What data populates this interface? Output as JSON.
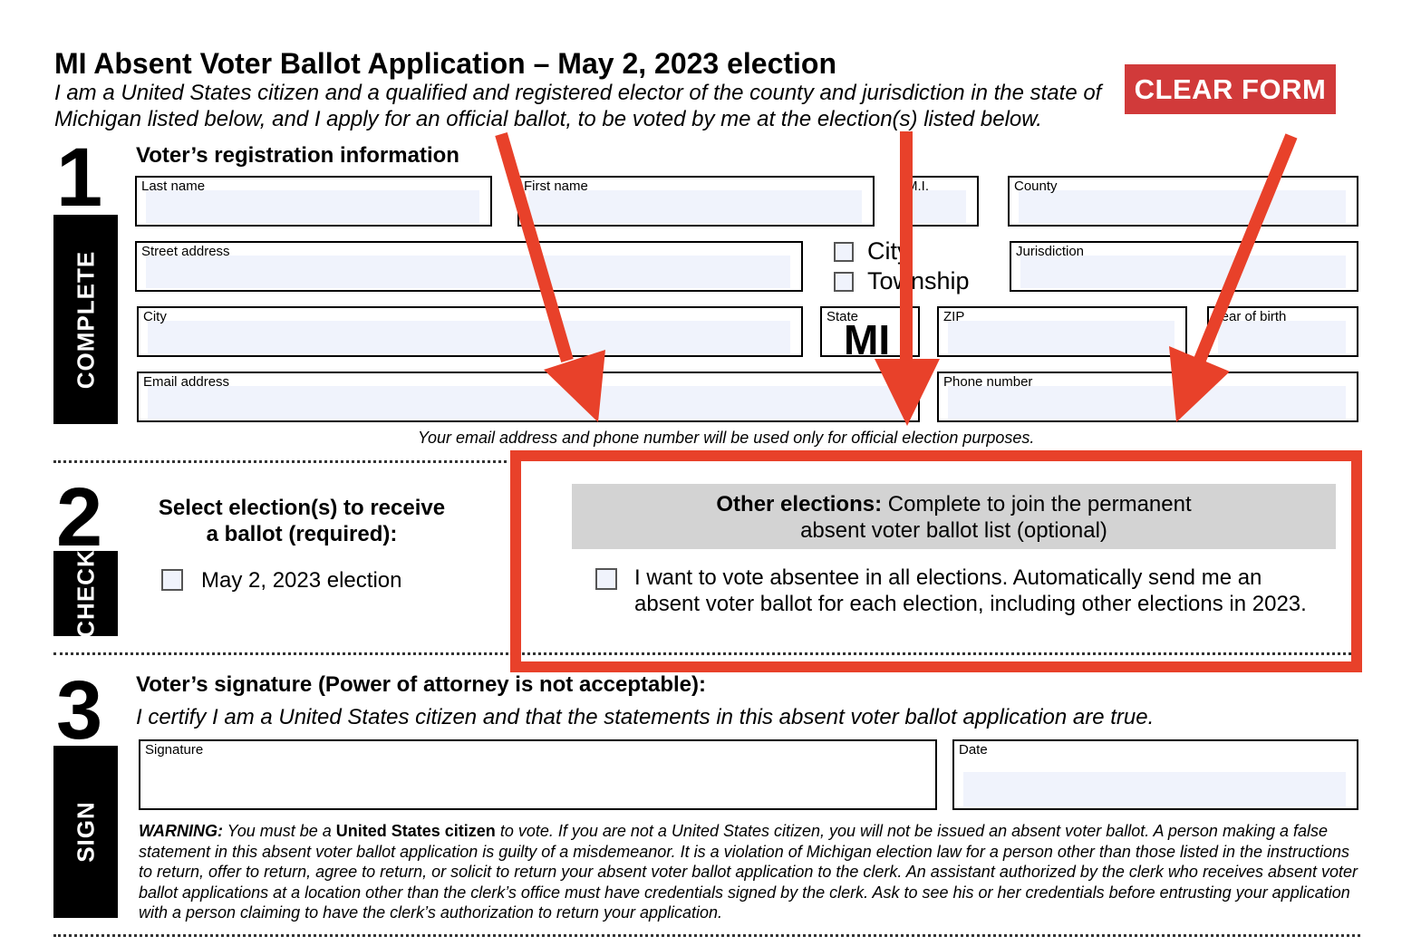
{
  "header": {
    "title": "MI Absent Voter Ballot Application – May 2, 2023 election",
    "subtitle": "I am a United States citizen and a qualified and registered elector of the county and jurisdiction in the state of Michigan listed below, and I apply for an official ballot, to be voted by me at the election(s) listed below.",
    "clear_form_label": "CLEAR FORM"
  },
  "section1": {
    "number": "1",
    "tab": "COMPLETE",
    "heading": "Voter’s registration information",
    "fields": {
      "last_name": "Last name",
      "first_name": "First name",
      "mi": "M.I.",
      "county": "County",
      "street": "Street address",
      "jurisdiction": "Jurisdiction",
      "city": "City",
      "state": "State",
      "state_value": "MI",
      "zip": "ZIP",
      "year_of_birth": "Year of birth",
      "email": "Email address",
      "phone": "Phone number"
    },
    "jurisdiction_type": {
      "city": "City",
      "township": "Township"
    },
    "note": "Your email address and phone number will be used only for official election purposes."
  },
  "section2": {
    "number": "2",
    "tab": "CHECK",
    "heading_line1": "Select election(s) to receive",
    "heading_line2": "a ballot (required):",
    "election_option": "May 2, 2023 election",
    "other_heading_bold": "Other elections:",
    "other_heading_rest": " Complete to join the permanent",
    "other_heading_line2": "absent voter ballot list (optional)",
    "permanent_option": "I want to vote absentee in all elections. Automatically send me an absent voter ballot for each election, including other elections in 2023."
  },
  "section3": {
    "number": "3",
    "tab": "SIGN",
    "heading": "Voter’s signature (Power of attorney is not acceptable):",
    "certify": "I certify I am a United States citizen and that the statements in this absent voter ballot application are true.",
    "signature_label": "Signature",
    "date_label": "Date",
    "warning_label": "WARNING:",
    "warning_part1": " You must be a ",
    "warning_bold": "United States citizen",
    "warning_part2": " to vote. If you are not a United States citizen, you will not be issued an absent voter ballot. A person making a false statement in this absent voter ballot application is guilty of a misdemeanor. It is a violation of Michigan election law for a person other than those listed in the instructions to return, offer to return, agree to return, or solicit to return your absent voter ballot application to the clerk. An assistant authorized by the clerk who receives absent voter ballot applications at a location other than the clerk’s office must have credentials signed by the clerk. Ask to see his or her credentials before entrusting your application with a person claiming to have the clerk’s authorization to return your application."
  },
  "colors": {
    "annotation_red": "#E8412A",
    "clear_button": "#D13A3A",
    "field_fill": "#F0F3FC",
    "gray_header": "#D3D3D3"
  }
}
